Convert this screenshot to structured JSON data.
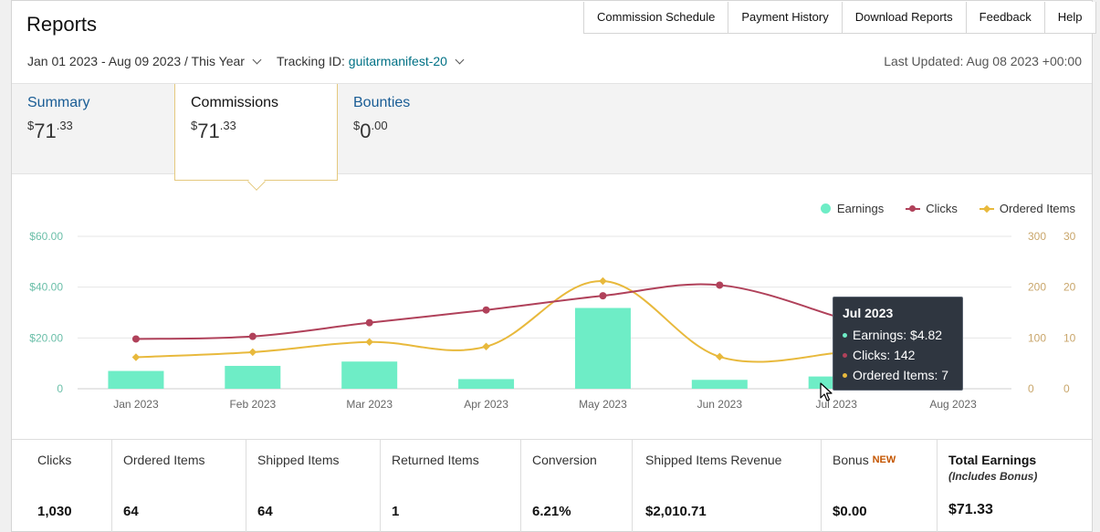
{
  "header": {
    "title": "Reports",
    "nav": [
      "Commission Schedule",
      "Payment History",
      "Download Reports",
      "Feedback",
      "Help"
    ]
  },
  "filters": {
    "date_range": "Jan 01 2023 - Aug 09 2023 / This Year",
    "tracking_label": "Tracking ID: ",
    "tracking_id": "guitarmanifest-20",
    "last_updated": "Last Updated: Aug 08 2023 +00:00"
  },
  "tabs": [
    {
      "label": "Summary",
      "amount_whole": "71",
      "amount_cents": ".33",
      "currency": "$",
      "active": false
    },
    {
      "label": "Commissions",
      "amount_whole": "71",
      "amount_cents": ".33",
      "currency": "$",
      "active": true
    },
    {
      "label": "Bounties",
      "amount_whole": "0",
      "amount_cents": ".00",
      "currency": "$",
      "active": false
    }
  ],
  "legend": {
    "earnings": "Earnings",
    "clicks": "Clicks",
    "ordered": "Ordered Items"
  },
  "colors": {
    "earnings": "#6eedc6",
    "clicks": "#b0415a",
    "ordered": "#e8b93c",
    "axis_left": "#6bbfa9",
    "axis_right": "#c9a66b"
  },
  "chart_data": {
    "type": "bar",
    "categories": [
      "Jan 2023",
      "Feb 2023",
      "Mar 2023",
      "Apr 2023",
      "May 2023",
      "Jun 2023",
      "Jul 2023",
      "Aug 2023"
    ],
    "series": [
      {
        "name": "Earnings",
        "type": "bar",
        "axis": "left",
        "values": [
          7,
          9,
          10.7,
          3.8,
          31.8,
          3.5,
          4.82,
          null
        ]
      },
      {
        "name": "Clicks",
        "type": "line",
        "axis": "right1",
        "values": [
          98,
          103,
          130,
          155,
          183,
          204,
          142,
          null
        ]
      },
      {
        "name": "Ordered Items",
        "type": "line",
        "axis": "right2",
        "values": [
          6.2,
          7.2,
          9.2,
          8.3,
          21.2,
          6.3,
          7,
          null
        ]
      }
    ],
    "y_left": {
      "min": 0,
      "max": 60,
      "ticks": [
        "0",
        "$20.00",
        "$40.00",
        "$60.00"
      ]
    },
    "y_right1": {
      "min": 0,
      "max": 300,
      "ticks": [
        "0",
        "100",
        "200",
        "300"
      ]
    },
    "y_right2": {
      "min": 0,
      "max": 30,
      "ticks": [
        "0",
        "10",
        "20",
        "30"
      ]
    },
    "grid": true,
    "legend_position": "top-right"
  },
  "tooltip": {
    "title": "Jul 2023",
    "earnings": "Earnings: $4.82",
    "clicks": "Clicks: 142",
    "ordered": "Ordered Items: 7"
  },
  "stats": [
    {
      "label": "Clicks",
      "value": "1,030"
    },
    {
      "label": "Ordered Items",
      "value": "64"
    },
    {
      "label": "Shipped Items",
      "value": "64"
    },
    {
      "label": "Returned Items",
      "value": "1"
    },
    {
      "label": "Conversion",
      "value": "6.21%"
    },
    {
      "label": "Shipped Items Revenue",
      "value": "$2,010.71"
    },
    {
      "label": "Bonus",
      "badge": "NEW",
      "value": "$0.00"
    },
    {
      "label": "Total Earnings",
      "sub": "(Includes Bonus)",
      "value": "$71.33"
    }
  ]
}
